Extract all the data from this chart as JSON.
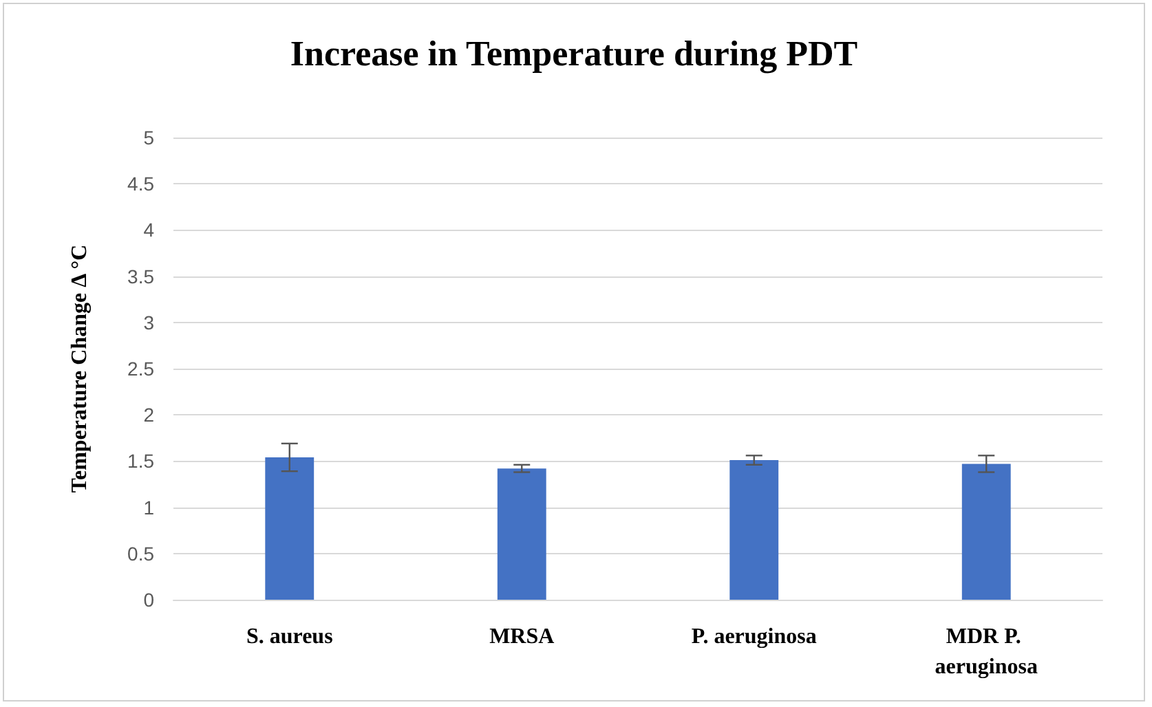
{
  "chart_data": {
    "type": "bar",
    "title": "Increase in Temperature during PDT",
    "ylabel": "Temperature Change Δ °C",
    "categories": [
      "S. aureus",
      "MRSA",
      "P. aeruginosa",
      "MDR P. aeruginosa"
    ],
    "values": [
      1.54,
      1.42,
      1.51,
      1.47
    ],
    "errors": [
      0.15,
      0.04,
      0.05,
      0.09
    ],
    "color": "#4472c4",
    "ylim": [
      0,
      5
    ],
    "yticks": [
      0,
      0.5,
      1,
      1.5,
      2,
      2.5,
      3,
      3.5,
      4,
      4.5,
      5
    ],
    "grid": "y"
  }
}
